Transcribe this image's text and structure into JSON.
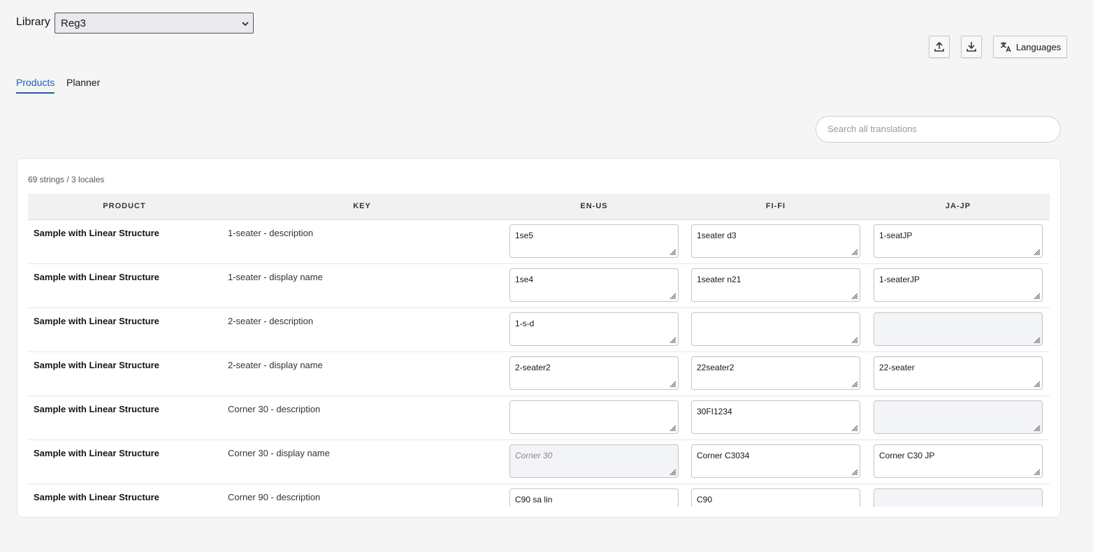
{
  "library": {
    "label": "Library",
    "selected": "Reg3"
  },
  "toolbar": {
    "languages_button": "Languages"
  },
  "tabs": {
    "items": [
      "Products",
      "Planner"
    ],
    "active": 0
  },
  "search": {
    "placeholder": "Search all translations"
  },
  "table": {
    "summary": "69 strings / 3 locales",
    "headers": [
      "PRODUCT",
      "KEY",
      "EN-US",
      "FI-FI",
      "JA-JP"
    ],
    "rows": [
      {
        "product": "Sample with Linear Structure",
        "key": "1-seater - description",
        "cells": [
          {
            "text": "1se5"
          },
          {
            "text": "1seater d3"
          },
          {
            "text": "1-seatJP"
          }
        ]
      },
      {
        "product": "Sample with Linear Structure",
        "key": "1-seater - display name",
        "cells": [
          {
            "text": "1se4"
          },
          {
            "text": "1seater n21"
          },
          {
            "text": "1-seaterJP"
          }
        ]
      },
      {
        "product": "Sample with Linear Structure",
        "key": "2-seater - description",
        "cells": [
          {
            "text": "1-s-d"
          },
          {
            "text": null
          },
          {
            "text": null,
            "fallback": true
          }
        ]
      },
      {
        "product": "Sample with Linear Structure",
        "key": "2-seater - display name",
        "cells": [
          {
            "text": "2-seater2"
          },
          {
            "text": "22seater2"
          },
          {
            "text": "22-seater"
          }
        ]
      },
      {
        "product": "Sample with Linear Structure",
        "key": "Corner 30 - description",
        "cells": [
          {
            "text": null
          },
          {
            "text": "30FI1234"
          },
          {
            "text": null,
            "fallback": true
          }
        ]
      },
      {
        "product": "Sample with Linear Structure",
        "key": "Corner 30 - display name",
        "cells": [
          {
            "text": "Corner 30",
            "fallback": true
          },
          {
            "text": "Corner C3034"
          },
          {
            "text": "Corner C30 JP"
          }
        ]
      },
      {
        "product": "Sample with Linear Structure",
        "key": "Corner 90 - description",
        "cells": [
          {
            "text": "C90 sa lin"
          },
          {
            "text": "C90"
          },
          {
            "text": null,
            "fallback": true
          }
        ]
      }
    ]
  }
}
